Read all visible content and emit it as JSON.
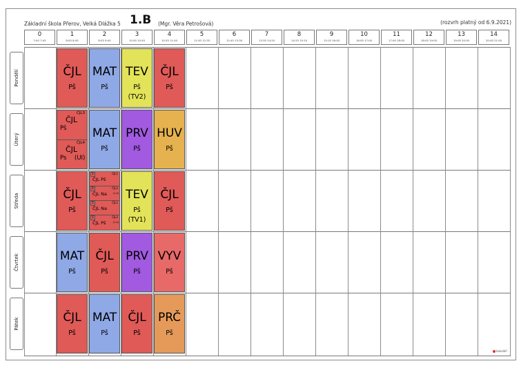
{
  "header": {
    "school": "Základní škola Přerov, Velká Dlážka 5",
    "class_name": "1.B",
    "teacher": "(Mgr. Věra Petrošová)",
    "validity": "(rozvrh platný od 6.9.2021)"
  },
  "periods": [
    {
      "num": "0",
      "time": "7:00 7:45"
    },
    {
      "num": "1",
      "time": "8:00 8:45"
    },
    {
      "num": "2",
      "time": "8:55 9:40"
    },
    {
      "num": "3",
      "time": "10:00 10:45"
    },
    {
      "num": "4",
      "time": "10:55 11:40"
    },
    {
      "num": "5",
      "time": "11:50 12:35"
    },
    {
      "num": "6",
      "time": "12:45 13:30"
    },
    {
      "num": "7",
      "time": "13:35 14:20"
    },
    {
      "num": "8",
      "time": "14:25 15:10"
    },
    {
      "num": "9",
      "time": "15:10 16:00"
    },
    {
      "num": "10",
      "time": "16:00 17:00"
    },
    {
      "num": "11",
      "time": "17:00 18:00"
    },
    {
      "num": "12",
      "time": "18:00 19:00"
    },
    {
      "num": "13",
      "time": "19:00 20:00"
    },
    {
      "num": "14",
      "time": "20:00 21:00"
    }
  ],
  "days": [
    "Pondělí",
    "Úterý",
    "Středa",
    "Čtvrtek",
    "Pátek"
  ],
  "colors": {
    "cjl": "#e05a58",
    "mat": "#8fa8e6",
    "tev": "#e3e35a",
    "prv": "#a15ae0",
    "huv": "#e6b24f",
    "vyv": "#e86a68",
    "prc": "#e59a5a"
  },
  "lessons": {
    "mon": [
      {
        "subject": "ČJL",
        "teacher": "Pš"
      },
      {
        "subject": "MAT",
        "teacher": "Pš"
      },
      {
        "subject": "TEV",
        "teacher": "Pš",
        "group": "(TV2)"
      },
      {
        "subject": "ČJL",
        "teacher": "Pš"
      }
    ],
    "tue_p1": [
      {
        "group": "ČJL3",
        "subject": "ČJL",
        "teacher": "Pš",
        "room": ""
      },
      {
        "group": "ČJL4",
        "subject": "ČJL",
        "teacher": "Ps",
        "room": "(UI)"
      }
    ],
    "tue": [
      {
        "subject": "MAT",
        "teacher": "Pš"
      },
      {
        "subject": "PRV",
        "teacher": "Pš"
      },
      {
        "subject": "HUV",
        "teacher": "Pš"
      }
    ],
    "wed_p1": {
      "subject": "ČJL",
      "teacher": "Pš"
    },
    "wed_p2": [
      {
        "n": "1",
        "group": "ČJL1",
        "text": "ČJL  Pš",
        "room": ""
      },
      {
        "n": "1",
        "group": "ČJL2",
        "text": "ČJL  Na",
        "room": "(1.A)"
      },
      {
        "n": "1",
        "group": "ČJL1",
        "text": "ČJL  Na",
        "room": ""
      },
      {
        "n": "1",
        "group": "ČJL2",
        "text": "ČJL  Pš",
        "room": "(1.A)"
      }
    ],
    "wed": [
      {
        "subject": "TEV",
        "teacher": "Pš",
        "group": "(TV1)"
      },
      {
        "subject": "ČJL",
        "teacher": "Pš"
      }
    ],
    "thu": [
      {
        "subject": "MAT",
        "teacher": "Pš"
      },
      {
        "subject": "ČJL",
        "teacher": "Pš"
      },
      {
        "subject": "PRV",
        "teacher": "Pš"
      },
      {
        "subject": "VYV",
        "teacher": "Pš"
      }
    ],
    "fri": [
      {
        "subject": "ČJL",
        "teacher": "Pš"
      },
      {
        "subject": "MAT",
        "teacher": "Pš"
      },
      {
        "subject": "ČJL",
        "teacher": "Pš"
      },
      {
        "subject": "PRČ",
        "teacher": "Pš"
      }
    ]
  },
  "logo_text": "bakaláři"
}
